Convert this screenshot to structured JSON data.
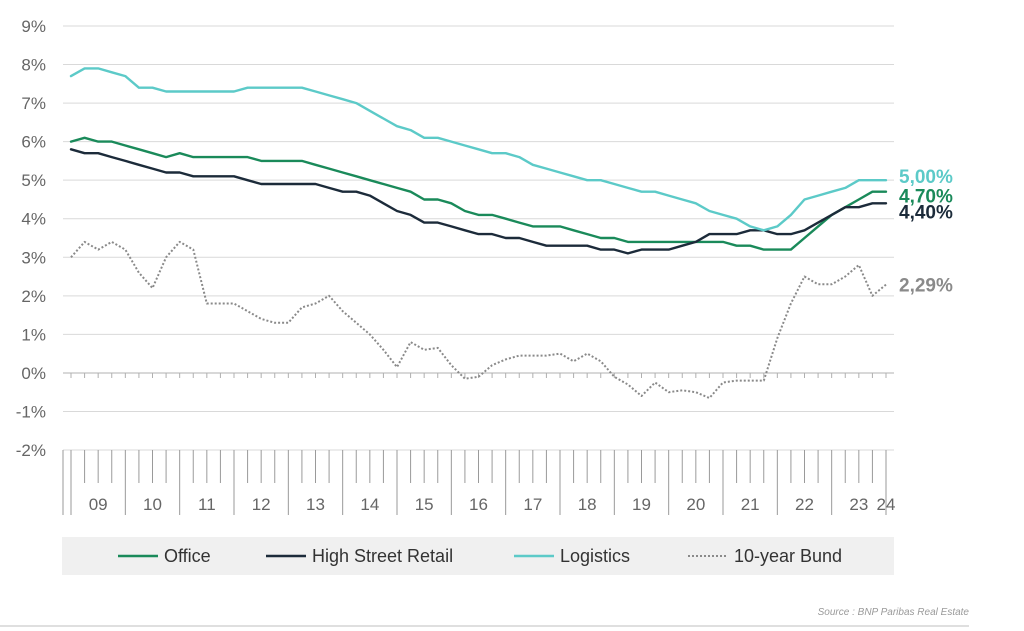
{
  "chart_data": {
    "type": "line",
    "ylim": [
      -2,
      9
    ],
    "yticks": [
      9,
      8,
      7,
      6,
      5,
      4,
      3,
      2,
      1,
      0,
      -1,
      -2
    ],
    "ytick_labels": [
      "9%",
      "8%",
      "7%",
      "6%",
      "5%",
      "4%",
      "3%",
      "2%",
      "1%",
      "0%",
      "-1%",
      "-2%"
    ],
    "years": [
      "09",
      "10",
      "11",
      "12",
      "13",
      "14",
      "15",
      "16",
      "17",
      "18",
      "19",
      "20",
      "21",
      "22",
      "23",
      "24"
    ],
    "x_range": [
      2009.0,
      2024.0
    ],
    "grid": true,
    "legend_position": "bottom",
    "series": [
      {
        "name": "Office",
        "color": "#1a8a5a",
        "dash": "solid",
        "end_label": "4,70%",
        "points": [
          [
            2009.0,
            6.0
          ],
          [
            2009.25,
            6.1
          ],
          [
            2009.5,
            6.0
          ],
          [
            2009.75,
            6.0
          ],
          [
            2010.0,
            5.9
          ],
          [
            2010.25,
            5.8
          ],
          [
            2010.5,
            5.7
          ],
          [
            2010.75,
            5.6
          ],
          [
            2011.0,
            5.7
          ],
          [
            2011.25,
            5.6
          ],
          [
            2011.5,
            5.6
          ],
          [
            2011.75,
            5.6
          ],
          [
            2012.0,
            5.6
          ],
          [
            2012.25,
            5.6
          ],
          [
            2012.5,
            5.5
          ],
          [
            2012.75,
            5.5
          ],
          [
            2013.0,
            5.5
          ],
          [
            2013.25,
            5.5
          ],
          [
            2013.5,
            5.4
          ],
          [
            2013.75,
            5.3
          ],
          [
            2014.0,
            5.2
          ],
          [
            2014.25,
            5.1
          ],
          [
            2014.5,
            5.0
          ],
          [
            2014.75,
            4.9
          ],
          [
            2015.0,
            4.8
          ],
          [
            2015.25,
            4.7
          ],
          [
            2015.5,
            4.5
          ],
          [
            2015.75,
            4.5
          ],
          [
            2016.0,
            4.4
          ],
          [
            2016.25,
            4.2
          ],
          [
            2016.5,
            4.1
          ],
          [
            2016.75,
            4.1
          ],
          [
            2017.0,
            4.0
          ],
          [
            2017.25,
            3.9
          ],
          [
            2017.5,
            3.8
          ],
          [
            2017.75,
            3.8
          ],
          [
            2018.0,
            3.8
          ],
          [
            2018.25,
            3.7
          ],
          [
            2018.5,
            3.6
          ],
          [
            2018.75,
            3.5
          ],
          [
            2019.0,
            3.5
          ],
          [
            2019.25,
            3.4
          ],
          [
            2019.5,
            3.4
          ],
          [
            2019.75,
            3.4
          ],
          [
            2020.0,
            3.4
          ],
          [
            2020.25,
            3.4
          ],
          [
            2020.5,
            3.4
          ],
          [
            2020.75,
            3.4
          ],
          [
            2021.0,
            3.4
          ],
          [
            2021.25,
            3.3
          ],
          [
            2021.5,
            3.3
          ],
          [
            2021.75,
            3.2
          ],
          [
            2022.0,
            3.2
          ],
          [
            2022.25,
            3.2
          ],
          [
            2022.5,
            3.5
          ],
          [
            2022.75,
            3.8
          ],
          [
            2023.0,
            4.1
          ],
          [
            2023.25,
            4.3
          ],
          [
            2023.5,
            4.5
          ],
          [
            2023.75,
            4.7
          ],
          [
            2024.0,
            4.7
          ]
        ]
      },
      {
        "name": "High Street Retail",
        "color": "#1c2b3a",
        "dash": "solid",
        "end_label": "4,40%",
        "points": [
          [
            2009.0,
            5.8
          ],
          [
            2009.25,
            5.7
          ],
          [
            2009.5,
            5.7
          ],
          [
            2009.75,
            5.6
          ],
          [
            2010.0,
            5.5
          ],
          [
            2010.25,
            5.4
          ],
          [
            2010.5,
            5.3
          ],
          [
            2010.75,
            5.2
          ],
          [
            2011.0,
            5.2
          ],
          [
            2011.25,
            5.1
          ],
          [
            2011.5,
            5.1
          ],
          [
            2011.75,
            5.1
          ],
          [
            2012.0,
            5.1
          ],
          [
            2012.25,
            5.0
          ],
          [
            2012.5,
            4.9
          ],
          [
            2012.75,
            4.9
          ],
          [
            2013.0,
            4.9
          ],
          [
            2013.25,
            4.9
          ],
          [
            2013.5,
            4.9
          ],
          [
            2013.75,
            4.8
          ],
          [
            2014.0,
            4.7
          ],
          [
            2014.25,
            4.7
          ],
          [
            2014.5,
            4.6
          ],
          [
            2014.75,
            4.4
          ],
          [
            2015.0,
            4.2
          ],
          [
            2015.25,
            4.1
          ],
          [
            2015.5,
            3.9
          ],
          [
            2015.75,
            3.9
          ],
          [
            2016.0,
            3.8
          ],
          [
            2016.25,
            3.7
          ],
          [
            2016.5,
            3.6
          ],
          [
            2016.75,
            3.6
          ],
          [
            2017.0,
            3.5
          ],
          [
            2017.25,
            3.5
          ],
          [
            2017.5,
            3.4
          ],
          [
            2017.75,
            3.3
          ],
          [
            2018.0,
            3.3
          ],
          [
            2018.25,
            3.3
          ],
          [
            2018.5,
            3.3
          ],
          [
            2018.75,
            3.2
          ],
          [
            2019.0,
            3.2
          ],
          [
            2019.25,
            3.1
          ],
          [
            2019.5,
            3.2
          ],
          [
            2019.75,
            3.2
          ],
          [
            2020.0,
            3.2
          ],
          [
            2020.25,
            3.3
          ],
          [
            2020.5,
            3.4
          ],
          [
            2020.75,
            3.6
          ],
          [
            2021.0,
            3.6
          ],
          [
            2021.25,
            3.6
          ],
          [
            2021.5,
            3.7
          ],
          [
            2021.75,
            3.7
          ],
          [
            2022.0,
            3.6
          ],
          [
            2022.25,
            3.6
          ],
          [
            2022.5,
            3.7
          ],
          [
            2022.75,
            3.9
          ],
          [
            2023.0,
            4.1
          ],
          [
            2023.25,
            4.3
          ],
          [
            2023.5,
            4.3
          ],
          [
            2023.75,
            4.4
          ],
          [
            2024.0,
            4.4
          ]
        ]
      },
      {
        "name": "Logistics",
        "color": "#5ccac8",
        "dash": "solid",
        "end_label": "5,00%",
        "points": [
          [
            2009.0,
            7.7
          ],
          [
            2009.25,
            7.9
          ],
          [
            2009.5,
            7.9
          ],
          [
            2009.75,
            7.8
          ],
          [
            2010.0,
            7.7
          ],
          [
            2010.25,
            7.4
          ],
          [
            2010.5,
            7.4
          ],
          [
            2010.75,
            7.3
          ],
          [
            2011.0,
            7.3
          ],
          [
            2011.25,
            7.3
          ],
          [
            2011.5,
            7.3
          ],
          [
            2011.75,
            7.3
          ],
          [
            2012.0,
            7.3
          ],
          [
            2012.25,
            7.4
          ],
          [
            2012.5,
            7.4
          ],
          [
            2012.75,
            7.4
          ],
          [
            2013.0,
            7.4
          ],
          [
            2013.25,
            7.4
          ],
          [
            2013.5,
            7.3
          ],
          [
            2013.75,
            7.2
          ],
          [
            2014.0,
            7.1
          ],
          [
            2014.25,
            7.0
          ],
          [
            2014.5,
            6.8
          ],
          [
            2014.75,
            6.6
          ],
          [
            2015.0,
            6.4
          ],
          [
            2015.25,
            6.3
          ],
          [
            2015.5,
            6.1
          ],
          [
            2015.75,
            6.1
          ],
          [
            2016.0,
            6.0
          ],
          [
            2016.25,
            5.9
          ],
          [
            2016.5,
            5.8
          ],
          [
            2016.75,
            5.7
          ],
          [
            2017.0,
            5.7
          ],
          [
            2017.25,
            5.6
          ],
          [
            2017.5,
            5.4
          ],
          [
            2017.75,
            5.3
          ],
          [
            2018.0,
            5.2
          ],
          [
            2018.25,
            5.1
          ],
          [
            2018.5,
            5.0
          ],
          [
            2018.75,
            5.0
          ],
          [
            2019.0,
            4.9
          ],
          [
            2019.25,
            4.8
          ],
          [
            2019.5,
            4.7
          ],
          [
            2019.75,
            4.7
          ],
          [
            2020.0,
            4.6
          ],
          [
            2020.25,
            4.5
          ],
          [
            2020.5,
            4.4
          ],
          [
            2020.75,
            4.2
          ],
          [
            2021.0,
            4.1
          ],
          [
            2021.25,
            4.0
          ],
          [
            2021.5,
            3.8
          ],
          [
            2021.75,
            3.7
          ],
          [
            2022.0,
            3.8
          ],
          [
            2022.25,
            4.1
          ],
          [
            2022.5,
            4.5
          ],
          [
            2022.75,
            4.6
          ],
          [
            2023.0,
            4.7
          ],
          [
            2023.25,
            4.8
          ],
          [
            2023.5,
            5.0
          ],
          [
            2023.75,
            5.0
          ],
          [
            2024.0,
            5.0
          ]
        ]
      },
      {
        "name": "10-year Bund",
        "color": "#8a8a8a",
        "dash": "dotted",
        "end_label": "2,29%",
        "points": [
          [
            2009.0,
            3.0
          ],
          [
            2009.25,
            3.4
          ],
          [
            2009.5,
            3.2
          ],
          [
            2009.75,
            3.4
          ],
          [
            2010.0,
            3.2
          ],
          [
            2010.25,
            2.6
          ],
          [
            2010.5,
            2.2
          ],
          [
            2010.75,
            3.0
          ],
          [
            2011.0,
            3.4
          ],
          [
            2011.25,
            3.2
          ],
          [
            2011.5,
            1.8
          ],
          [
            2011.75,
            1.8
          ],
          [
            2012.0,
            1.8
          ],
          [
            2012.25,
            1.6
          ],
          [
            2012.5,
            1.4
          ],
          [
            2012.75,
            1.3
          ],
          [
            2013.0,
            1.3
          ],
          [
            2013.25,
            1.7
          ],
          [
            2013.5,
            1.8
          ],
          [
            2013.75,
            2.0
          ],
          [
            2014.0,
            1.6
          ],
          [
            2014.25,
            1.3
          ],
          [
            2014.5,
            1.0
          ],
          [
            2014.75,
            0.6
          ],
          [
            2015.0,
            0.15
          ],
          [
            2015.25,
            0.8
          ],
          [
            2015.5,
            0.6
          ],
          [
            2015.75,
            0.65
          ],
          [
            2016.0,
            0.2
          ],
          [
            2016.25,
            -0.15
          ],
          [
            2016.5,
            -0.1
          ],
          [
            2016.75,
            0.2
          ],
          [
            2017.0,
            0.35
          ],
          [
            2017.25,
            0.45
          ],
          [
            2017.5,
            0.45
          ],
          [
            2017.75,
            0.45
          ],
          [
            2018.0,
            0.5
          ],
          [
            2018.25,
            0.3
          ],
          [
            2018.5,
            0.5
          ],
          [
            2018.75,
            0.3
          ],
          [
            2019.0,
            -0.1
          ],
          [
            2019.25,
            -0.3
          ],
          [
            2019.5,
            -0.6
          ],
          [
            2019.75,
            -0.25
          ],
          [
            2020.0,
            -0.5
          ],
          [
            2020.25,
            -0.45
          ],
          [
            2020.5,
            -0.5
          ],
          [
            2020.75,
            -0.65
          ],
          [
            2021.0,
            -0.25
          ],
          [
            2021.25,
            -0.2
          ],
          [
            2021.5,
            -0.2
          ],
          [
            2021.75,
            -0.2
          ],
          [
            2022.0,
            0.9
          ],
          [
            2022.25,
            1.8
          ],
          [
            2022.5,
            2.5
          ],
          [
            2022.75,
            2.3
          ],
          [
            2023.0,
            2.3
          ],
          [
            2023.25,
            2.5
          ],
          [
            2023.5,
            2.8
          ],
          [
            2023.75,
            2.0
          ],
          [
            2024.0,
            2.29
          ]
        ]
      }
    ]
  },
  "source_text": "Source : BNP Paribas Real Estate"
}
